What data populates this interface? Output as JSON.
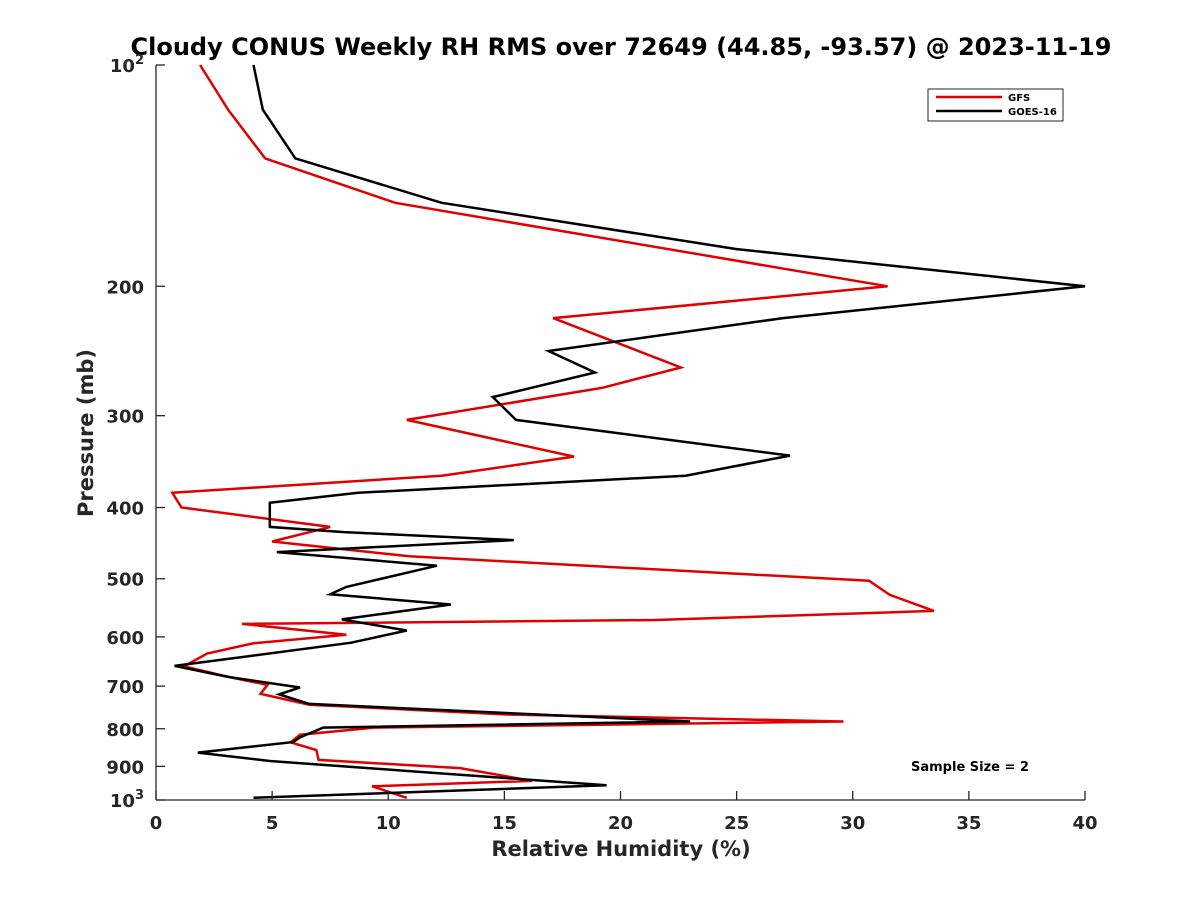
{
  "chart_data": {
    "type": "line",
    "title": "Cloudy CONUS Weekly RH RMS over 72649 (44.85, -93.57) @ 2023-11-19",
    "xlabel": "Relative Humidity (%)",
    "ylabel": "Pressure (mb)",
    "xlim": [
      0,
      40
    ],
    "ylim": [
      100,
      1000
    ],
    "y_scale": "log",
    "y_reversed": true,
    "grid": false,
    "legend_position": "top-right",
    "x_ticks": [
      "0",
      "5",
      "10",
      "15",
      "20",
      "25",
      "30",
      "35",
      "40"
    ],
    "y_ticks": [
      {
        "value": 100,
        "base": "10",
        "exp": "2"
      },
      {
        "value": 200,
        "label": "200"
      },
      {
        "value": 300,
        "label": "300"
      },
      {
        "value": 400,
        "label": "400"
      },
      {
        "value": 500,
        "label": "500"
      },
      {
        "value": 600,
        "label": "600"
      },
      {
        "value": 700,
        "label": "700"
      },
      {
        "value": 800,
        "label": "800"
      },
      {
        "value": 900,
        "label": "900"
      },
      {
        "value": 1000,
        "base": "10",
        "exp": "3"
      }
    ],
    "annotation": "Sample Size = 2",
    "series": [
      {
        "name": "GFS",
        "color": "#e00000",
        "points": [
          [
            1.9,
            100
          ],
          [
            3.1,
            115
          ],
          [
            4.7,
            134
          ],
          [
            10.3,
            154
          ],
          [
            31.5,
            200
          ],
          [
            17.1,
            221
          ],
          [
            22.6,
            258
          ],
          [
            19.2,
            275
          ],
          [
            10.8,
            304
          ],
          [
            18.0,
            341
          ],
          [
            12.3,
            362
          ],
          [
            0.7,
            382
          ],
          [
            1.1,
            400
          ],
          [
            7.5,
            425
          ],
          [
            5.0,
            445
          ],
          [
            10.9,
            466
          ],
          [
            30.7,
            503
          ],
          [
            31.6,
            526
          ],
          [
            33.5,
            553
          ],
          [
            21.5,
            569
          ],
          [
            3.7,
            576
          ],
          [
            8.2,
            596
          ],
          [
            4.2,
            612
          ],
          [
            2.2,
            632
          ],
          [
            1.2,
            658
          ],
          [
            3.3,
            682
          ],
          [
            4.8,
            697
          ],
          [
            4.5,
            717
          ],
          [
            6.6,
            742
          ],
          [
            15.1,
            765
          ],
          [
            29.6,
            782
          ],
          [
            9.4,
            797
          ],
          [
            6.2,
            815
          ],
          [
            5.8,
            835
          ],
          [
            6.9,
            855
          ],
          [
            7.0,
            882
          ],
          [
            13.1,
            905
          ],
          [
            16.2,
            942
          ],
          [
            9.3,
            958
          ],
          [
            10.8,
            993
          ]
        ]
      },
      {
        "name": "GOES-16",
        "color": "#000000",
        "points": [
          [
            4.2,
            100
          ],
          [
            4.6,
            115
          ],
          [
            6.0,
            134
          ],
          [
            12.3,
            154
          ],
          [
            25.0,
            178
          ],
          [
            40.0,
            200
          ],
          [
            27.0,
            221
          ],
          [
            16.9,
            245
          ],
          [
            18.9,
            262
          ],
          [
            14.5,
            283
          ],
          [
            15.5,
            304
          ],
          [
            27.3,
            340
          ],
          [
            22.8,
            362
          ],
          [
            8.7,
            382
          ],
          [
            4.9,
            394
          ],
          [
            4.9,
            425
          ],
          [
            8.1,
            432
          ],
          [
            15.4,
            443
          ],
          [
            5.2,
            460
          ],
          [
            12.1,
            480
          ],
          [
            8.2,
            513
          ],
          [
            7.5,
            525
          ],
          [
            12.7,
            542
          ],
          [
            8.0,
            568
          ],
          [
            10.8,
            588
          ],
          [
            8.4,
            611
          ],
          [
            0.8,
            657
          ],
          [
            3.1,
            680
          ],
          [
            6.2,
            703
          ],
          [
            5.3,
            718
          ],
          [
            6.6,
            740
          ],
          [
            23.0,
            782
          ],
          [
            7.2,
            797
          ],
          [
            6.2,
            822
          ],
          [
            5.9,
            834
          ],
          [
            1.8,
            862
          ],
          [
            4.9,
            885
          ],
          [
            11.2,
            915
          ],
          [
            19.4,
            955
          ],
          [
            4.2,
            993
          ]
        ]
      }
    ]
  }
}
